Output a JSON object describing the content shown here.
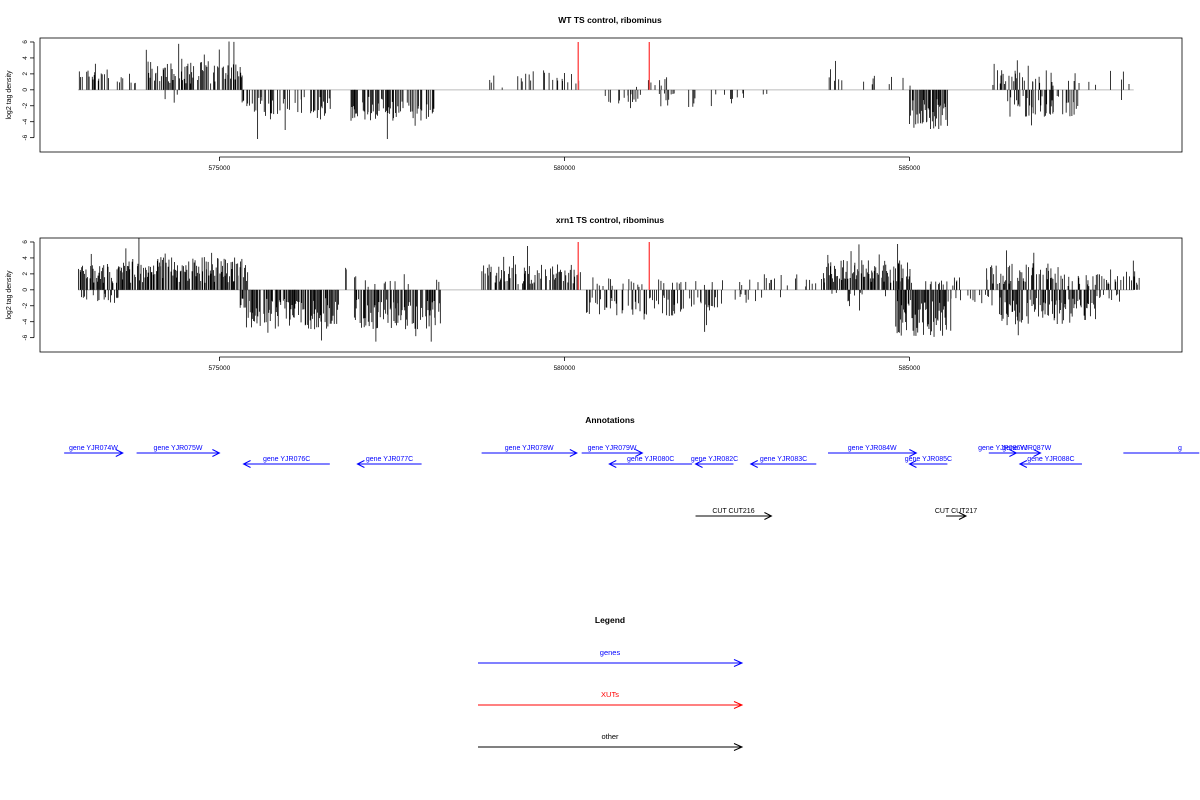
{
  "chart_data": [
    {
      "type": "bar",
      "title": "WT TS control, ribominus",
      "ylabel": "log2 tag density",
      "xlim": [
        572400,
        588950
      ],
      "ylim": [
        -7.8,
        6.5
      ],
      "yticks": [
        -6,
        -4,
        -2,
        0,
        2,
        4,
        6
      ],
      "yticklabels": [
        "-6",
        "-4",
        "-2",
        "0",
        "2",
        "4",
        "6"
      ],
      "xticks": [
        575000,
        580000,
        585000
      ],
      "xticklabels": [
        "575000",
        "580000",
        "585000"
      ],
      "grid": false,
      "highlight_color": "#ff4d4d",
      "highlights": [
        {
          "x": 580200,
          "y": 6.0
        },
        {
          "x": 581230,
          "y": 6.0
        }
      ],
      "plus_regions": [
        {
          "start": 572950,
          "end": 573400,
          "mean": 1.6,
          "dens": 0.45
        },
        {
          "start": 573500,
          "end": 573800,
          "mean": 1.3,
          "dens": 0.22
        },
        {
          "start": 573900,
          "end": 575350,
          "mean": 2.2,
          "dens": 0.65
        },
        {
          "start": 578900,
          "end": 579150,
          "mean": 0.8,
          "dens": 0.18
        },
        {
          "start": 579300,
          "end": 579900,
          "mean": 1.5,
          "dens": 0.2
        },
        {
          "start": 579900,
          "end": 580250,
          "mean": 1.5,
          "dens": 0.35
        },
        {
          "start": 581000,
          "end": 581500,
          "mean": 1.0,
          "dens": 0.15
        },
        {
          "start": 583800,
          "end": 584500,
          "mean": 1.3,
          "dens": 0.2
        },
        {
          "start": 584700,
          "end": 585000,
          "mean": 1.0,
          "dens": 0.15
        },
        {
          "start": 586200,
          "end": 587100,
          "mean": 1.5,
          "dens": 0.35
        },
        {
          "start": 587300,
          "end": 587700,
          "mean": 1.5,
          "dens": 0.15
        },
        {
          "start": 587900,
          "end": 588200,
          "mean": 1.6,
          "dens": 0.2
        }
      ],
      "minus_regions": [
        {
          "start": 573000,
          "end": 573150,
          "mean": -1.2,
          "dens": 0.2
        },
        {
          "start": 574200,
          "end": 574400,
          "mean": -1.0,
          "dens": 0.08
        },
        {
          "start": 575300,
          "end": 576600,
          "mean": -2.3,
          "dens": 0.55
        },
        {
          "start": 576900,
          "end": 578100,
          "mean": -2.4,
          "dens": 0.6
        },
        {
          "start": 580300,
          "end": 581100,
          "mean": -1.4,
          "dens": 0.2
        },
        {
          "start": 581300,
          "end": 582600,
          "mean": -1.3,
          "dens": 0.17
        },
        {
          "start": 582700,
          "end": 583000,
          "mean": -0.8,
          "dens": 0.08
        },
        {
          "start": 585000,
          "end": 585550,
          "mean": -3.0,
          "dens": 0.8
        },
        {
          "start": 586400,
          "end": 587500,
          "mean": -2.1,
          "dens": 0.45
        },
        {
          "start": 588000,
          "end": 588200,
          "mean": -1.0,
          "dens": 0.08
        }
      ]
    },
    {
      "type": "bar",
      "title": "xrn1 TS control, ribominus",
      "ylabel": "log2 tag density",
      "xlim": [
        572400,
        588950
      ],
      "ylim": [
        -7.8,
        6.5
      ],
      "yticks": [
        -6,
        -4,
        -2,
        0,
        2,
        4,
        6
      ],
      "yticklabels": [
        "-6",
        "-4",
        "-2",
        "0",
        "2",
        "4",
        "6"
      ],
      "xticks": [
        575000,
        580000,
        585000
      ],
      "xticklabels": [
        "575000",
        "580000",
        "585000"
      ],
      "grid": false,
      "highlight_color": "#ff4d4d",
      "highlights": [
        {
          "x": 580200,
          "y": 6.0
        },
        {
          "x": 581230,
          "y": 6.0
        }
      ],
      "plus_regions": [
        {
          "start": 572950,
          "end": 573600,
          "mean": 2.0,
          "dens": 0.75
        },
        {
          "start": 573600,
          "end": 575400,
          "mean": 2.5,
          "dens": 0.85
        },
        {
          "start": 576800,
          "end": 577000,
          "mean": 1.8,
          "dens": 0.3
        },
        {
          "start": 577100,
          "end": 578200,
          "mean": 0.8,
          "dens": 0.15
        },
        {
          "start": 578800,
          "end": 580250,
          "mean": 2.0,
          "dens": 0.55
        },
        {
          "start": 580400,
          "end": 581200,
          "mean": 1.0,
          "dens": 0.2
        },
        {
          "start": 581300,
          "end": 582700,
          "mean": 0.8,
          "dens": 0.12
        },
        {
          "start": 582700,
          "end": 583800,
          "mean": 1.2,
          "dens": 0.25
        },
        {
          "start": 583800,
          "end": 585000,
          "mean": 2.3,
          "dens": 0.8
        },
        {
          "start": 585000,
          "end": 585800,
          "mean": 1.0,
          "dens": 0.15
        },
        {
          "start": 586100,
          "end": 587200,
          "mean": 2.0,
          "dens": 0.6
        },
        {
          "start": 587200,
          "end": 587900,
          "mean": 1.3,
          "dens": 0.3
        },
        {
          "start": 587900,
          "end": 588350,
          "mean": 1.8,
          "dens": 0.45
        }
      ],
      "minus_regions": [
        {
          "start": 573000,
          "end": 573600,
          "mean": -1.0,
          "dens": 0.2
        },
        {
          "start": 575300,
          "end": 576750,
          "mean": -3.0,
          "dens": 0.8
        },
        {
          "start": 576950,
          "end": 578200,
          "mean": -3.0,
          "dens": 0.8
        },
        {
          "start": 580300,
          "end": 582300,
          "mean": -2.0,
          "dens": 0.4
        },
        {
          "start": 582300,
          "end": 583200,
          "mean": -1.0,
          "dens": 0.15
        },
        {
          "start": 583800,
          "end": 584800,
          "mean": -1.0,
          "dens": 0.12
        },
        {
          "start": 584800,
          "end": 585600,
          "mean": -3.6,
          "dens": 0.9
        },
        {
          "start": 585600,
          "end": 586300,
          "mean": -1.2,
          "dens": 0.2
        },
        {
          "start": 586300,
          "end": 587700,
          "mean": -2.7,
          "dens": 0.7
        },
        {
          "start": 587700,
          "end": 588100,
          "mean": -1.0,
          "dens": 0.15
        }
      ]
    }
  ],
  "annotations": {
    "title": "Annotations",
    "xlim": [
      572400,
      588950
    ],
    "colors": {
      "genes": "#0000ff",
      "XUTs": "#ff0000",
      "other": "#000000"
    },
    "features": [
      {
        "label": "gene YJR074W",
        "start": 572750,
        "end": 573600,
        "strand": "+",
        "row": 0,
        "category": "genes"
      },
      {
        "label": "gene YJR075W",
        "start": 573800,
        "end": 575000,
        "strand": "+",
        "row": 0,
        "category": "genes"
      },
      {
        "label": "gene YJR076C",
        "start": 575350,
        "end": 576600,
        "strand": "-",
        "row": 1,
        "category": "genes"
      },
      {
        "label": "gene YJR077C",
        "start": 577000,
        "end": 577930,
        "strand": "-",
        "row": 1,
        "category": "genes"
      },
      {
        "label": "gene YJR078W",
        "start": 578800,
        "end": 580180,
        "strand": "+",
        "row": 0,
        "category": "genes"
      },
      {
        "label": "gene YJR079W",
        "start": 580250,
        "end": 581130,
        "strand": "+",
        "row": 0,
        "category": "genes"
      },
      {
        "label": "gene YJR080C",
        "start": 580650,
        "end": 581850,
        "strand": "-",
        "row": 1,
        "category": "genes"
      },
      {
        "label": "gene YJR082C",
        "start": 581900,
        "end": 582450,
        "strand": "-",
        "row": 1,
        "category": "genes"
      },
      {
        "label": "gene YJR083C",
        "start": 582700,
        "end": 583650,
        "strand": "-",
        "row": 1,
        "category": "genes"
      },
      {
        "label": "gene YJR084W",
        "start": 583820,
        "end": 585100,
        "strand": "+",
        "row": 0,
        "category": "genes"
      },
      {
        "label": "gene YJR085C",
        "start": 585000,
        "end": 585550,
        "strand": "-",
        "row": 1,
        "category": "genes"
      },
      {
        "label": "gene YJR086W",
        "start": 586150,
        "end": 586550,
        "strand": "+",
        "row": 0,
        "category": "genes"
      },
      {
        "label": "gene YJR087W",
        "start": 586500,
        "end": 586900,
        "strand": "+",
        "row": 0,
        "category": "genes"
      },
      {
        "label": "gene YJR088C",
        "start": 586600,
        "end": 587500,
        "strand": "-",
        "row": 1,
        "category": "genes"
      },
      {
        "label": "g",
        "start": 588100,
        "end": 589200,
        "strand": "+",
        "row": 0,
        "category": "genes"
      },
      {
        "label": "CUT CUT216",
        "start": 581900,
        "end": 583000,
        "strand": "+",
        "row": 2,
        "category": "other"
      },
      {
        "label": "CUT CUT217",
        "start": 585530,
        "end": 585820,
        "strand": "+",
        "row": 2,
        "category": "other"
      }
    ]
  },
  "legend": {
    "title": "Legend",
    "items": [
      {
        "label": "genes",
        "color": "#0000ff"
      },
      {
        "label": "XUTs",
        "color": "#ff0000"
      },
      {
        "label": "other",
        "color": "#000000"
      }
    ]
  }
}
